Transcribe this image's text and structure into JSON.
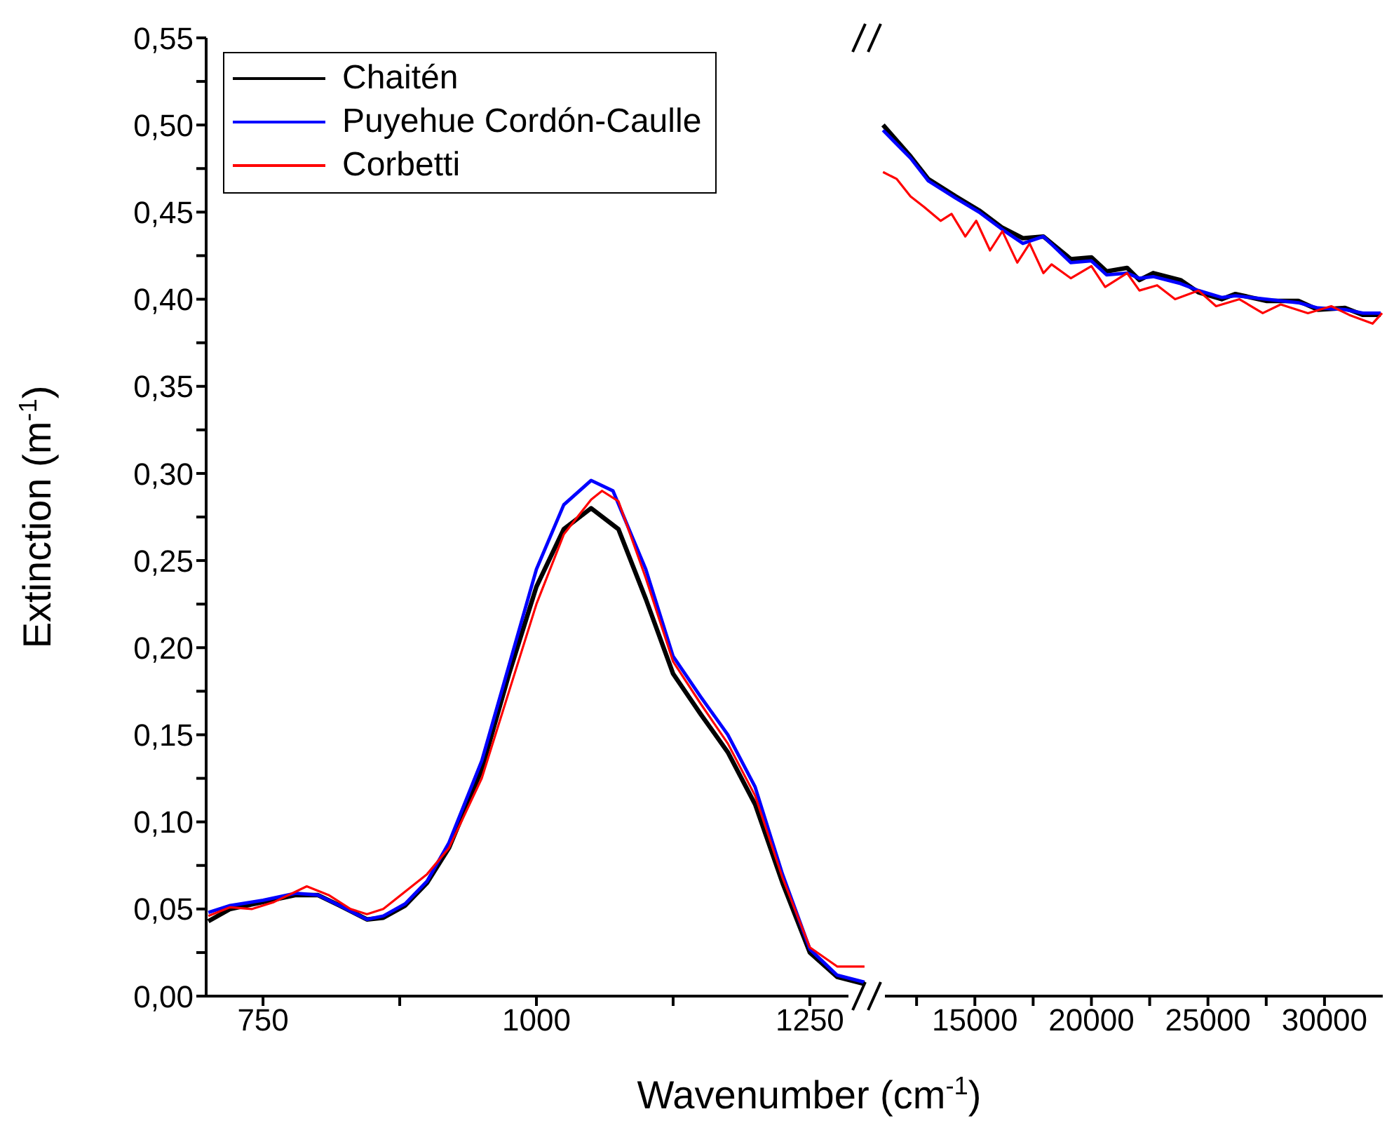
{
  "chart_data": [
    {
      "type": "line",
      "xlabel": "Wavenumber (cm$^{-1}$)",
      "ylabel": "Extinction (m$^{-1}$)",
      "legend": "top left",
      "marker": "none",
      "line_style": "solid",
      "grid": false,
      "xlim": [
        698,
        1302
      ],
      "xticks": [
        750,
        {
          "value": 875,
          "label": null
        },
        1000,
        {
          "value": 1125,
          "label": null
        },
        1250
      ],
      "ylim": [
        0,
        0.55
      ],
      "yticks": [
        {
          "value": 0,
          "label": "0,00"
        },
        {
          "value": 0.025,
          "label": null
        },
        {
          "value": 0.05,
          "label": "0,05"
        },
        {
          "value": 0.075,
          "label": null
        },
        {
          "value": 0.1,
          "label": "0,10"
        },
        {
          "value": 0.125,
          "label": null
        },
        {
          "value": 0.15,
          "label": "0,15"
        },
        {
          "value": 0.175,
          "label": null
        },
        {
          "value": 0.2,
          "label": "0,20"
        },
        {
          "value": 0.225,
          "label": null
        },
        {
          "value": 0.25,
          "label": "0,25"
        },
        {
          "value": 0.275,
          "label": null
        },
        {
          "value": 0.3,
          "label": "0,30"
        },
        {
          "value": 0.325,
          "label": null
        },
        {
          "value": 0.35,
          "label": "0,35"
        },
        {
          "value": 0.375,
          "label": null
        },
        {
          "value": 0.4,
          "label": "0,40"
        },
        {
          "value": 0.425,
          "label": null
        },
        {
          "value": 0.45,
          "label": "0,45"
        },
        {
          "value": 0.475,
          "label": null
        },
        {
          "value": 0.5,
          "label": "0,50"
        },
        {
          "value": 0.525,
          "label": null
        },
        {
          "value": 0.55,
          "label": "0,55"
        }
      ],
      "series": [
        {
          "name": "Chaitén",
          "color": "#000000",
          "x": [
            700,
            720,
            750,
            780,
            800,
            820,
            845,
            860,
            880,
            900,
            920,
            950,
            975,
            1000,
            1025,
            1050,
            1075,
            1100,
            1125,
            1150,
            1175,
            1200,
            1225,
            1250,
            1275,
            1300
          ],
          "values": [
            0.043,
            0.05,
            0.054,
            0.058,
            0.058,
            0.052,
            0.044,
            0.045,
            0.052,
            0.065,
            0.085,
            0.13,
            0.185,
            0.235,
            0.268,
            0.28,
            0.268,
            0.228,
            0.185,
            0.162,
            0.14,
            0.11,
            0.065,
            0.025,
            0.011,
            0.007
          ]
        },
        {
          "name": "Puyehue Cordón-Caulle",
          "color": "#0000ff",
          "x": [
            700,
            720,
            750,
            780,
            800,
            820,
            845,
            860,
            880,
            900,
            920,
            950,
            975,
            1000,
            1025,
            1050,
            1070,
            1100,
            1125,
            1150,
            1175,
            1200,
            1225,
            1250,
            1275,
            1300
          ],
          "values": [
            0.048,
            0.052,
            0.055,
            0.059,
            0.058,
            0.052,
            0.044,
            0.046,
            0.053,
            0.066,
            0.088,
            0.135,
            0.19,
            0.245,
            0.282,
            0.296,
            0.29,
            0.245,
            0.195,
            0.172,
            0.15,
            0.12,
            0.07,
            0.027,
            0.012,
            0.008
          ]
        },
        {
          "name": "Corbetti",
          "color": "#ff0000",
          "x": [
            700,
            720,
            740,
            760,
            780,
            790,
            810,
            830,
            845,
            860,
            880,
            900,
            920,
            950,
            975,
            1000,
            1025,
            1050,
            1060,
            1075,
            1100,
            1125,
            1150,
            1175,
            1200,
            1225,
            1250,
            1275,
            1300
          ],
          "values": [
            0.046,
            0.051,
            0.05,
            0.054,
            0.06,
            0.063,
            0.058,
            0.05,
            0.047,
            0.05,
            0.06,
            0.07,
            0.085,
            0.125,
            0.175,
            0.225,
            0.265,
            0.285,
            0.29,
            0.284,
            0.24,
            0.192,
            0.168,
            0.145,
            0.115,
            0.068,
            0.028,
            0.017,
            0.017
          ]
        }
      ]
    },
    {
      "type": "line",
      "marker": "none",
      "line_style": "solid",
      "grid": false,
      "tick_labels": "x",
      "xlim": [
        10600,
        32500
      ],
      "xticks": [
        {
          "value": 12500,
          "label": null
        },
        15000,
        {
          "value": 17500,
          "label": null
        },
        20000,
        {
          "value": 22500,
          "label": null
        },
        25000,
        {
          "value": 27500,
          "label": null
        },
        30000
      ],
      "ylim": [
        0,
        0.55
      ],
      "series": [
        {
          "color": "#000000",
          "x": [
            11060,
            12240,
            13000,
            14180,
            15180,
            16180,
            17060,
            17940,
            19120,
            20000,
            20650,
            21530,
            22060,
            22650,
            23820,
            24590,
            25590,
            26180,
            27530,
            28880,
            29710,
            30880,
            31650,
            32410
          ],
          "values": [
            0.5,
            0.482,
            0.469,
            0.459,
            0.451,
            0.441,
            0.435,
            0.436,
            0.423,
            0.424,
            0.416,
            0.418,
            0.411,
            0.415,
            0.411,
            0.404,
            0.4,
            0.403,
            0.399,
            0.399,
            0.394,
            0.395,
            0.391,
            0.391
          ]
        },
        {
          "color": "#0000ff",
          "x": [
            11060,
            12240,
            13000,
            14180,
            15180,
            16180,
            17060,
            17940,
            19120,
            20000,
            20650,
            21530,
            22060,
            22650,
            23820,
            24590,
            25590,
            26180,
            27530,
            28880,
            29710,
            30880,
            31650,
            32410
          ],
          "values": [
            0.497,
            0.481,
            0.468,
            0.458,
            0.45,
            0.44,
            0.432,
            0.436,
            0.421,
            0.422,
            0.414,
            0.415,
            0.412,
            0.413,
            0.409,
            0.405,
            0.401,
            0.402,
            0.4,
            0.398,
            0.395,
            0.394,
            0.392,
            0.392
          ]
        },
        {
          "color": "#ff0000",
          "x": [
            11060,
            11650,
            12240,
            12820,
            13530,
            14000,
            14590,
            15060,
            15650,
            16180,
            16820,
            17350,
            17940,
            18290,
            19120,
            20000,
            20590,
            21530,
            22060,
            22820,
            23590,
            24590,
            25350,
            26350,
            27350,
            28120,
            29290,
            30290,
            31060,
            32060,
            32470
          ],
          "values": [
            0.473,
            0.469,
            0.459,
            0.453,
            0.445,
            0.449,
            0.436,
            0.445,
            0.428,
            0.439,
            0.421,
            0.432,
            0.415,
            0.42,
            0.412,
            0.419,
            0.407,
            0.415,
            0.405,
            0.408,
            0.4,
            0.405,
            0.396,
            0.4,
            0.392,
            0.397,
            0.392,
            0.396,
            0.391,
            0.386,
            0.392
          ]
        }
      ]
    }
  ]
}
